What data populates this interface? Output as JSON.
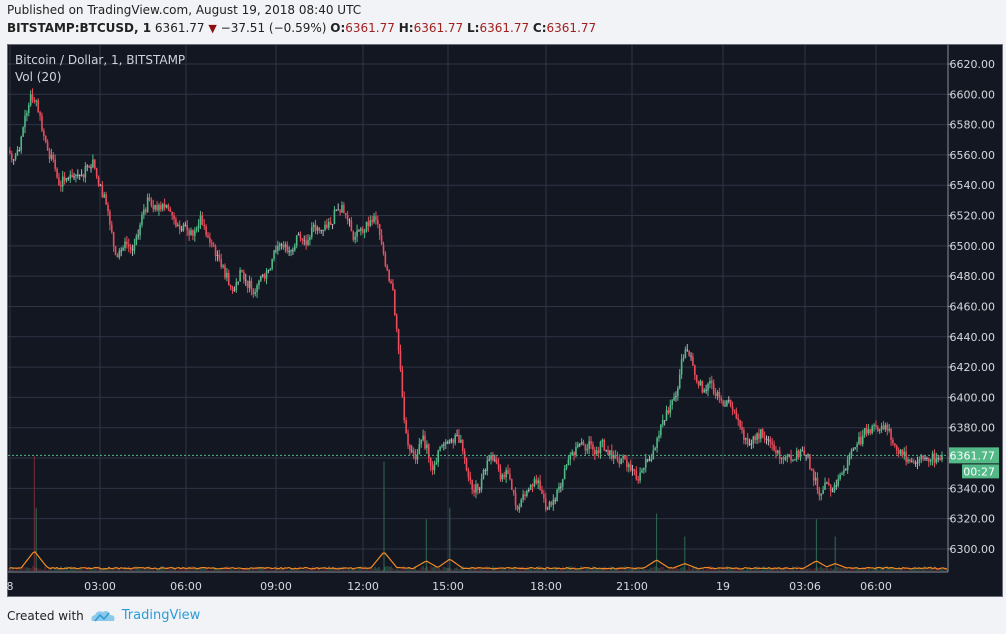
{
  "header": {
    "published": "Published on TradingView.com, August 19, 2018 08:40 UTC",
    "symbol": "BITSTAMP:BTCUSD, 1",
    "last": "6361.77",
    "change": "−37.51 (−0.59%)",
    "o_label": "O:",
    "o": "6361.77",
    "h_label": "H:",
    "h": "6361.77",
    "l_label": "L:",
    "l": "6361.77",
    "c_label": "C:",
    "c": "6361.77",
    "direction_icon": "triangle-down-icon"
  },
  "legend": {
    "title": "Bitcoin / Dollar, 1, BITSTAMP",
    "volume": "Vol (20)"
  },
  "price_label": "6361.77",
  "countdown": "00:27",
  "footer": {
    "created_with": "Created with",
    "brand": "TradingView",
    "logo_icon": "tradingview-cloud-icon"
  },
  "colors": {
    "background": "#131722",
    "grid": "#2f3445",
    "up": "#53b987",
    "down": "#eb4d5c",
    "neutral": "#b2b5be",
    "volume_ma": "#f08a24",
    "price_line": "#53b987",
    "brand": "#2e9bd6"
  },
  "chart_data": {
    "type": "candlestick",
    "timeframe": "1 minute",
    "ylim": [
      6290,
      6630
    ],
    "y_ticks": [
      "6620.00",
      "6600.00",
      "6580.00",
      "6560.00",
      "6540.00",
      "6520.00",
      "6500.00",
      "6480.00",
      "6460.00",
      "6440.00",
      "6420.00",
      "6400.00",
      "6380.00",
      "6360.00",
      "6340.00",
      "6320.00",
      "6300.00"
    ],
    "x_ticks": [
      "8",
      "03:00",
      "06:00",
      "09:00",
      "12:00",
      "15:00",
      "18:00",
      "21:00",
      "19",
      "03:06",
      "06:00"
    ],
    "grid": true,
    "last_price": 6361.77,
    "close_approx": [
      6563,
      6557,
      6563,
      6586,
      6600,
      6596,
      6576,
      6563,
      6557,
      6540,
      6543,
      6547,
      6547,
      6547,
      6553,
      6557,
      6540,
      6534,
      6514,
      6494,
      6497,
      6501,
      6497,
      6507,
      6524,
      6530,
      6527,
      6524,
      6527,
      6520,
      6514,
      6514,
      6507,
      6510,
      6520,
      6507,
      6501,
      6494,
      6487,
      6474,
      6471,
      6484,
      6477,
      6471,
      6474,
      6481,
      6484,
      6497,
      6501,
      6501,
      6497,
      6507,
      6504,
      6504,
      6514,
      6510,
      6514,
      6514,
      6524,
      6527,
      6517,
      6504,
      6510,
      6510,
      6517,
      6517,
      6501,
      6484,
      6471,
      6431,
      6385,
      6365,
      6359,
      6372,
      6369,
      6352,
      6365,
      6369,
      6372,
      6375,
      6372,
      6352,
      6339,
      6339,
      6352,
      6359,
      6359,
      6346,
      6352,
      6339,
      6326,
      6336,
      6339,
      6346,
      6339,
      6326,
      6329,
      6339,
      6346,
      6359,
      6362,
      6369,
      6365,
      6369,
      6365,
      6372,
      6362,
      6362,
      6356,
      6359,
      6352,
      6346,
      6352,
      6359,
      6365,
      6375,
      6385,
      6395,
      6401,
      6425,
      6431,
      6421,
      6408,
      6405,
      6411,
      6401,
      6398,
      6398,
      6392,
      6385,
      6372,
      6369,
      6372,
      6379,
      6372,
      6369,
      6365,
      6359,
      6362,
      6359,
      6365,
      6362,
      6352,
      6339,
      6339,
      6342,
      6342,
      6349,
      6352,
      6365,
      6369,
      6375,
      6379,
      6382,
      6379,
      6382,
      6372,
      6365,
      6362,
      6359,
      6357,
      6359,
      6360,
      6359,
      6360,
      6361.77
    ],
    "volume_spikes": [
      {
        "at": 0.028,
        "value": 1.0
      },
      {
        "at": 0.03,
        "value": 0.55
      },
      {
        "at": 0.4,
        "value": 0.95
      },
      {
        "at": 0.445,
        "value": 0.45
      },
      {
        "at": 0.47,
        "value": 0.55
      },
      {
        "at": 0.69,
        "value": 0.5
      },
      {
        "at": 0.72,
        "value": 0.3
      },
      {
        "at": 0.86,
        "value": 0.45
      },
      {
        "at": 0.88,
        "value": 0.3
      }
    ],
    "volume_ma_label": "Vol (20)"
  }
}
